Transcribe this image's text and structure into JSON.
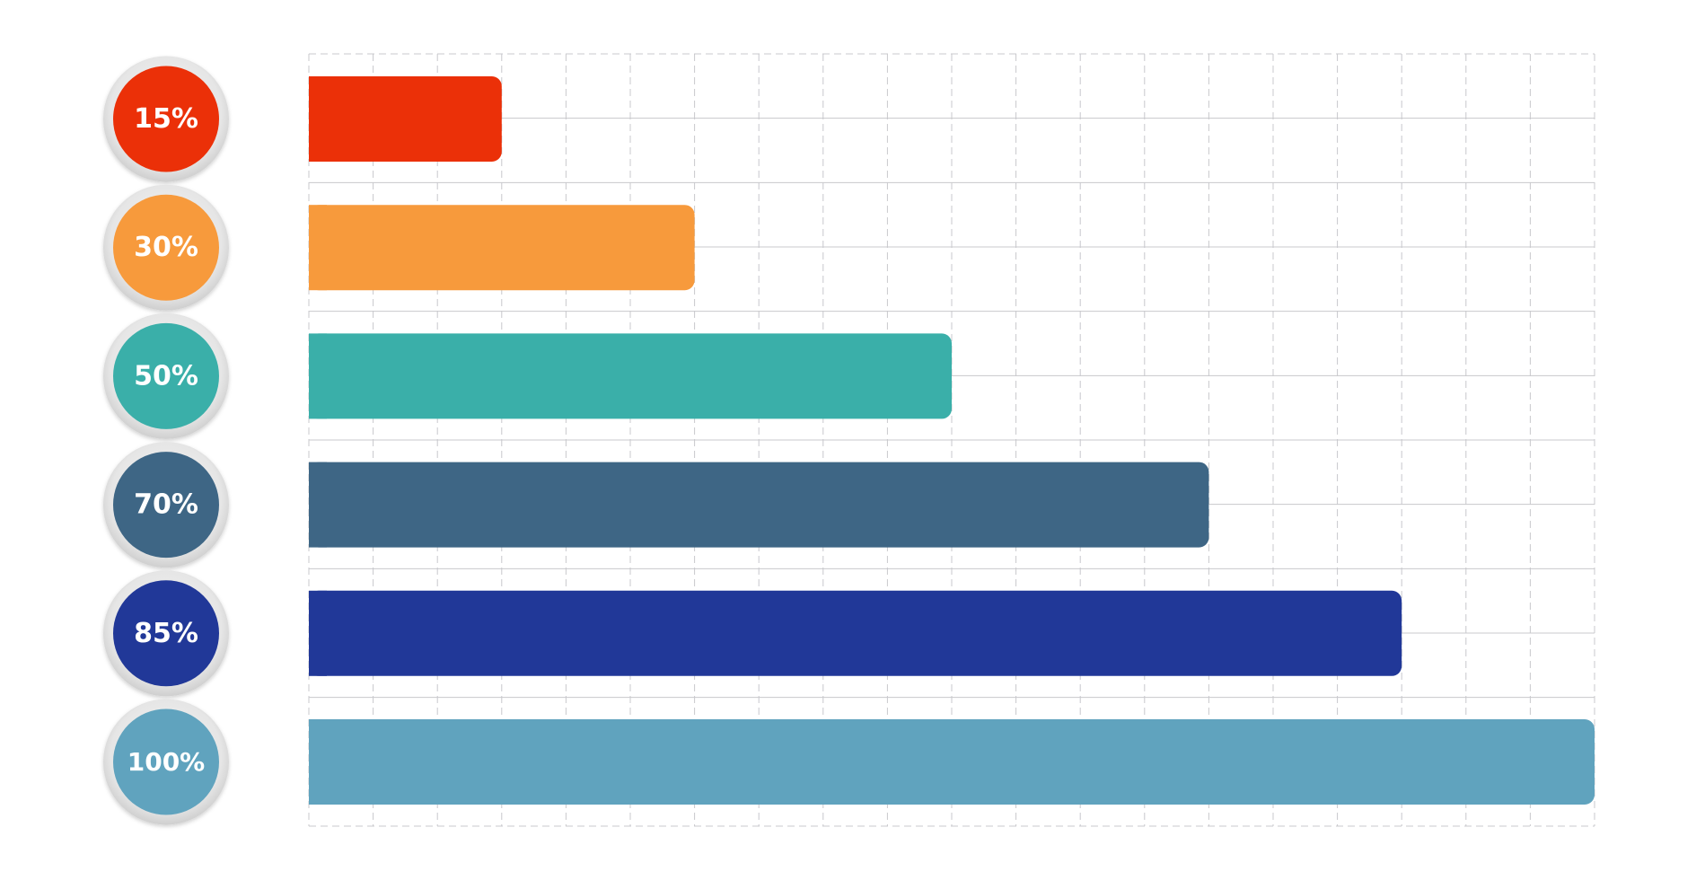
{
  "chart_data": {
    "type": "bar",
    "orientation": "horizontal",
    "title": "",
    "xlabel": "",
    "ylabel": "",
    "xlim": [
      0,
      100
    ],
    "grid": true,
    "legend": "none",
    "bars": [
      {
        "label": "15%",
        "value": 15,
        "color": "#EB3008"
      },
      {
        "label": "30%",
        "value": 30,
        "color": "#F79A3C"
      },
      {
        "label": "50%",
        "value": 50,
        "color": "#3AAFA9"
      },
      {
        "label": "70%",
        "value": 70,
        "color": "#3E6685"
      },
      {
        "label": "85%",
        "value": 85,
        "color": "#213898"
      },
      {
        "label": "100%",
        "value": 100,
        "color": "#60A3BE"
      }
    ]
  }
}
